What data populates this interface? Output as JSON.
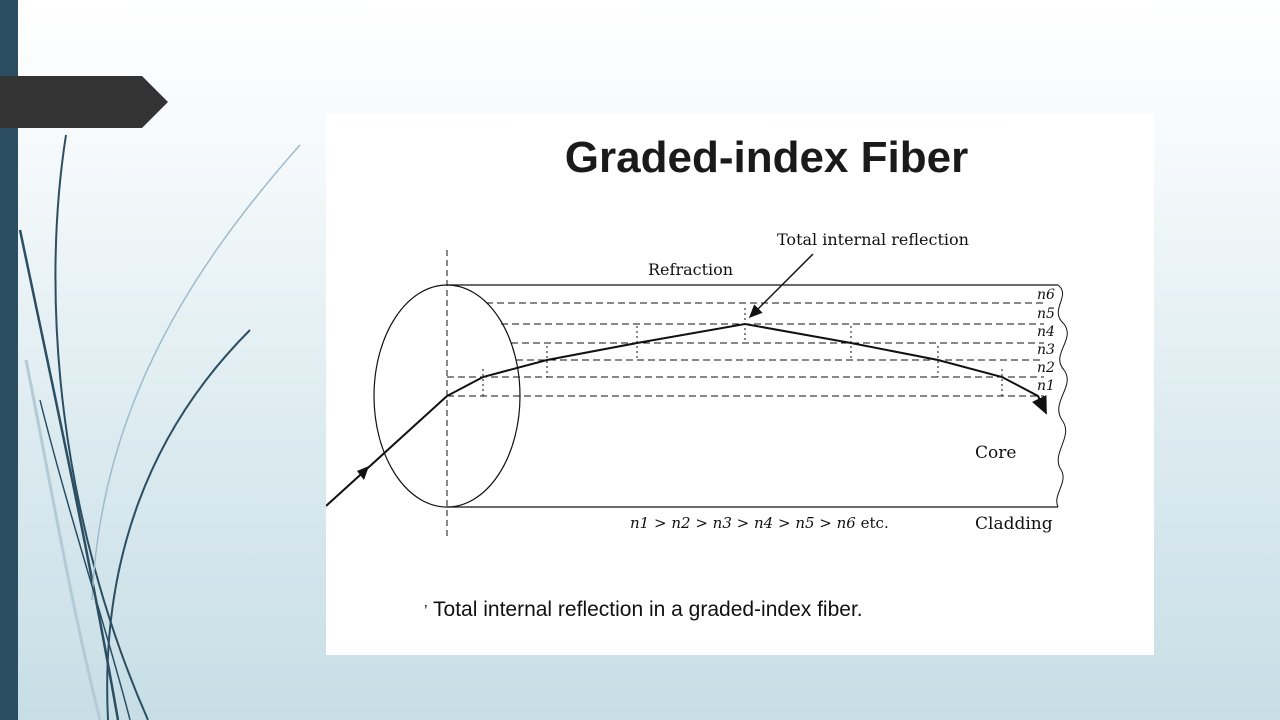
{
  "diagram": {
    "title": "Graded-index Fiber",
    "labels": {
      "refraction": "Refraction",
      "total_internal_reflection": "Total internal reflection",
      "core": "Core",
      "cladding": "Cladding"
    },
    "index_labels": [
      "n6",
      "n5",
      "n4",
      "n3",
      "n2",
      "n1"
    ],
    "inequality": {
      "terms": [
        "n1",
        "n2",
        "n3",
        "n4",
        "n5",
        "n6"
      ],
      "suffix": "etc."
    },
    "caption_prefix": "’",
    "caption": "Total internal reflection in a graded-index fiber."
  },
  "colors": {
    "left_bar": "#2c4e62",
    "title_tab": "#333333",
    "decor_curves": "#2c4e62"
  }
}
